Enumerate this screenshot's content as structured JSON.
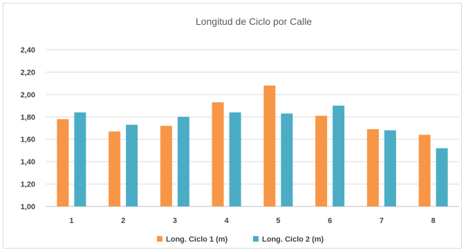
{
  "chart_data": {
    "type": "bar",
    "title": "Longitud de Ciclo por Calle",
    "xlabel": "",
    "ylabel": "",
    "categories": [
      "1",
      "2",
      "3",
      "4",
      "5",
      "6",
      "7",
      "8"
    ],
    "series": [
      {
        "name": "Long. Ciclo 1 (m)",
        "color": "#f79646",
        "values": [
          1.78,
          1.67,
          1.72,
          1.93,
          2.08,
          1.81,
          1.69,
          1.64
        ]
      },
      {
        "name": "Long. Ciclo 2 (m)",
        "color": "#4bacc6",
        "values": [
          1.84,
          1.73,
          1.8,
          1.84,
          1.83,
          1.9,
          1.68,
          1.52
        ]
      }
    ],
    "ylim": [
      1.0,
      2.4
    ],
    "yticks": [
      "1,00",
      "1,20",
      "1,40",
      "1,60",
      "1,80",
      "2,00",
      "2,20",
      "2,40"
    ],
    "grid": true,
    "legend_position": "bottom"
  }
}
